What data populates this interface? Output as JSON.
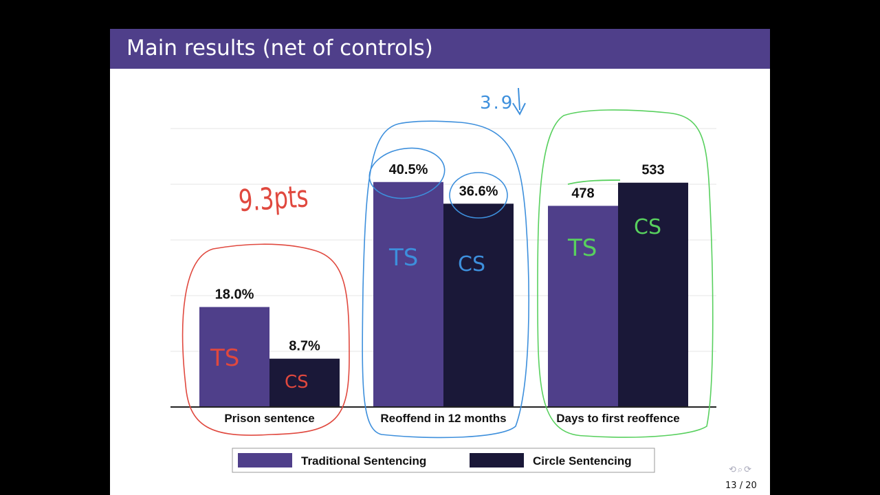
{
  "slide": {
    "title": "Main results (net of controls)",
    "page_current": "13",
    "page_separator": "/",
    "page_total": "20",
    "nav_icons": "⟲⌕⟳"
  },
  "chart_data": {
    "type": "bar",
    "categories": [
      "Prison sentence",
      "Reoffend in 12 months",
      "Days to first reoffence"
    ],
    "series": [
      {
        "name": "Traditional Sentencing",
        "color": "#4f3f8a",
        "values": [
          18.0,
          40.5,
          478
        ],
        "labels": [
          "18.0%",
          "40.5%",
          "478"
        ]
      },
      {
        "name": "Circle Sentencing",
        "color": "#1a1838",
        "values": [
          8.7,
          36.6,
          533
        ],
        "labels": [
          "8.7%",
          "36.6%",
          "533"
        ]
      }
    ],
    "group_ranges": [
      [
        0,
        50
      ],
      [
        0,
        50
      ],
      [
        0,
        660
      ]
    ],
    "grid": true,
    "legend_position": "bottom"
  },
  "annotations": {
    "prison_diff": "9.3pts",
    "reoffend_diff": "3.9",
    "ts": "TS",
    "cs": "CS",
    "colors": {
      "red": "#e0483e",
      "blue": "#3d8fdc",
      "green": "#58d05e"
    }
  }
}
